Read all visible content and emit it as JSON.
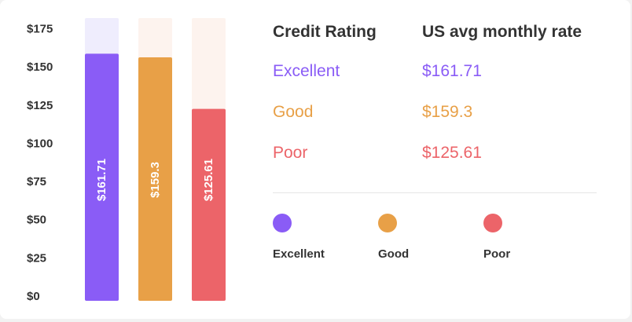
{
  "chart_data": {
    "type": "bar",
    "categories": [
      "Excellent",
      "Good",
      "Poor"
    ],
    "values": [
      161.71,
      159.3,
      125.61
    ],
    "value_labels": [
      "$161.71",
      "$159.3",
      "$125.61"
    ],
    "ylim": [
      0,
      185
    ],
    "yticks": [
      0,
      25,
      50,
      75,
      100,
      125,
      150,
      175
    ],
    "ytick_labels": [
      "$0",
      "$25",
      "$50",
      "$75",
      "$100",
      "$125",
      "$150",
      "$175"
    ],
    "colors": [
      "#8a5cf6",
      "#e8a047",
      "#ec6469"
    ],
    "track_colors": [
      "#efedfd",
      "#fdf3ee",
      "#fdf3ee"
    ],
    "grid": false
  },
  "table": {
    "headers": [
      "Credit Rating",
      "US avg monthly rate"
    ],
    "rows": [
      {
        "rating": "Excellent",
        "rate": "$161.71",
        "color": "#8a5cf6"
      },
      {
        "rating": "Good",
        "rate": "$159.3",
        "color": "#e8a047"
      },
      {
        "rating": "Poor",
        "rate": "$125.61",
        "color": "#ec6469"
      }
    ]
  },
  "legend": {
    "items": [
      {
        "label": "Excellent",
        "color": "#8a5cf6"
      },
      {
        "label": "Good",
        "color": "#e8a047"
      },
      {
        "label": "Poor",
        "color": "#ec6469"
      }
    ]
  }
}
